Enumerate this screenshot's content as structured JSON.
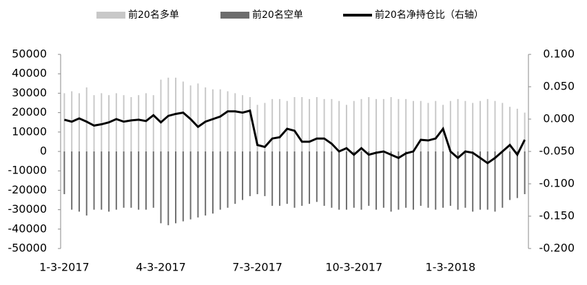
{
  "chart_data": {
    "type": "bar-line",
    "categories": [
      "1-3-2017",
      null,
      null,
      null,
      null,
      null,
      null,
      null,
      null,
      null,
      null,
      null,
      null,
      "4-3-2017",
      null,
      null,
      null,
      null,
      null,
      null,
      null,
      null,
      null,
      null,
      null,
      null,
      "7-3-2017",
      null,
      null,
      null,
      null,
      null,
      null,
      null,
      null,
      null,
      null,
      null,
      null,
      "10-3-2017",
      null,
      null,
      null,
      null,
      null,
      null,
      null,
      null,
      null,
      null,
      null,
      null,
      "1-3-2018",
      null,
      null,
      null,
      null,
      null,
      null,
      null,
      null,
      null,
      null
    ],
    "series": [
      {
        "name": "前20名多单",
        "color": "#c8c8c8",
        "axis": "y",
        "values": [
          30000,
          31000,
          30000,
          33000,
          29000,
          30000,
          29000,
          30000,
          29000,
          28000,
          29000,
          30000,
          29000,
          37000,
          38000,
          38000,
          36000,
          34000,
          35000,
          33000,
          32000,
          32000,
          31000,
          30000,
          29000,
          28000,
          24000,
          25000,
          27000,
          27000,
          26000,
          28000,
          28000,
          27000,
          28000,
          27000,
          27000,
          26000,
          24000,
          26000,
          27000,
          28000,
          27000,
          27000,
          28000,
          27000,
          27000,
          26000,
          26000,
          25000,
          26000,
          24000,
          26000,
          27000,
          26000,
          25000,
          26000,
          27000,
          26000,
          25000,
          23000,
          22000,
          20000
        ]
      },
      {
        "name": "前20名空单",
        "color": "#6d6d6d",
        "axis": "y",
        "values": [
          -22000,
          -30000,
          -31000,
          -33000,
          -30000,
          -30000,
          -31000,
          -30000,
          -29000,
          -29000,
          -30000,
          -30000,
          -29000,
          -37000,
          -38000,
          -37000,
          -36000,
          -35000,
          -34000,
          -33000,
          -32000,
          -30000,
          -29000,
          -27000,
          -25000,
          -23000,
          -22000,
          -23000,
          -28000,
          -28000,
          -27000,
          -29000,
          -28000,
          -27000,
          -26000,
          -28000,
          -29000,
          -30000,
          -30000,
          -29000,
          -30000,
          -28000,
          -30000,
          -29000,
          -31000,
          -30000,
          -29000,
          -30000,
          -28000,
          -29000,
          -30000,
          -29000,
          -28000,
          -30000,
          -29000,
          -31000,
          -30000,
          -30000,
          -31000,
          -29000,
          -25000,
          -24000,
          -22000
        ]
      },
      {
        "name": "前20名净持仓比（右轴）",
        "color": "#000000",
        "axis": "y2",
        "values": [
          -0.001,
          -0.004,
          0.001,
          -0.004,
          -0.01,
          -0.008,
          -0.005,
          0.0,
          -0.004,
          -0.002,
          -0.001,
          -0.003,
          0.006,
          -0.005,
          0.005,
          0.008,
          0.01,
          0.0,
          -0.012,
          -0.004,
          0.0,
          0.004,
          0.012,
          0.012,
          0.01,
          0.013,
          -0.04,
          -0.043,
          -0.03,
          -0.028,
          -0.015,
          -0.018,
          -0.035,
          -0.035,
          -0.03,
          -0.03,
          -0.038,
          -0.05,
          -0.045,
          -0.055,
          -0.045,
          -0.055,
          -0.052,
          -0.05,
          -0.055,
          -0.06,
          -0.053,
          -0.05,
          -0.032,
          -0.033,
          -0.03,
          -0.015,
          -0.05,
          -0.06,
          -0.05,
          -0.052,
          -0.06,
          -0.068,
          -0.06,
          -0.05,
          -0.04,
          -0.055,
          -0.032
        ]
      }
    ],
    "ylim": [
      -50000,
      50000
    ],
    "yticks": [
      50000,
      40000,
      30000,
      20000,
      10000,
      0,
      -10000,
      -20000,
      -30000,
      -40000,
      -50000
    ],
    "y2lim": [
      -0.2,
      0.1
    ],
    "y2ticks": [
      {
        "value": 0.1,
        "label": "0.100"
      },
      {
        "value": 0.05,
        "label": "0.050"
      },
      {
        "value": 0,
        "label": "0.000"
      },
      {
        "value": -0.05,
        "label": "-0.050"
      },
      {
        "value": -0.1,
        "label": "-0.100"
      },
      {
        "value": -0.15,
        "label": "-0.150"
      },
      {
        "value": -0.2,
        "label": "-0.200"
      }
    ],
    "legend": "top"
  }
}
